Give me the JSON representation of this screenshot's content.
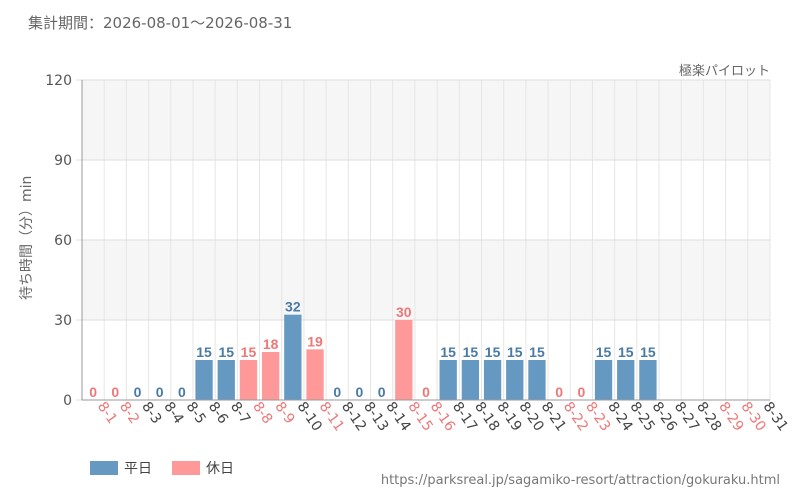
{
  "header": {
    "period_label": "集計期間：2026-08-01〜2026-08-31",
    "attraction_name": "極楽パイロット"
  },
  "footer": {
    "source_url": "https://parksreal.jp/sagamiko-resort/attraction/gokuraku.html"
  },
  "colors": {
    "weekday": "#6699c2",
    "holiday": "#ff9999",
    "weekday_label": "#4a7aa6",
    "holiday_label": "#ee7777"
  },
  "chart_data": {
    "type": "bar",
    "ylabel": "待ち時間（分）min",
    "ylim": [
      0,
      120
    ],
    "yticks": [
      0,
      30,
      60,
      90,
      120
    ],
    "grid": true,
    "legend_position": "bottom-left",
    "categories": [
      "8-1",
      "8-2",
      "8-3",
      "8-4",
      "8-5",
      "8-6",
      "8-7",
      "8-8",
      "8-9",
      "8-10",
      "8-11",
      "8-12",
      "8-13",
      "8-14",
      "8-15",
      "8-16",
      "8-17",
      "8-18",
      "8-19",
      "8-20",
      "8-21",
      "8-22",
      "8-23",
      "8-24",
      "8-25",
      "8-26",
      "8-27",
      "8-28",
      "8-29",
      "8-30",
      "8-31"
    ],
    "values": [
      0,
      0,
      0,
      0,
      0,
      15,
      15,
      15,
      18,
      32,
      19,
      0,
      0,
      0,
      30,
      0,
      15,
      15,
      15,
      15,
      15,
      0,
      0,
      15,
      15,
      15,
      null,
      null,
      null,
      null,
      null
    ],
    "day_type": [
      "holiday",
      "holiday",
      "weekday",
      "weekday",
      "weekday",
      "weekday",
      "weekday",
      "holiday",
      "holiday",
      "weekday",
      "holiday",
      "weekday",
      "weekday",
      "weekday",
      "holiday",
      "holiday",
      "weekday",
      "weekday",
      "weekday",
      "weekday",
      "weekday",
      "holiday",
      "holiday",
      "weekday",
      "weekday",
      "weekday",
      "weekday",
      "weekday",
      "holiday",
      "holiday",
      "weekday"
    ],
    "series": [
      {
        "name": "平日",
        "color": "#6699c2"
      },
      {
        "name": "休日",
        "color": "#ff9999"
      }
    ]
  }
}
